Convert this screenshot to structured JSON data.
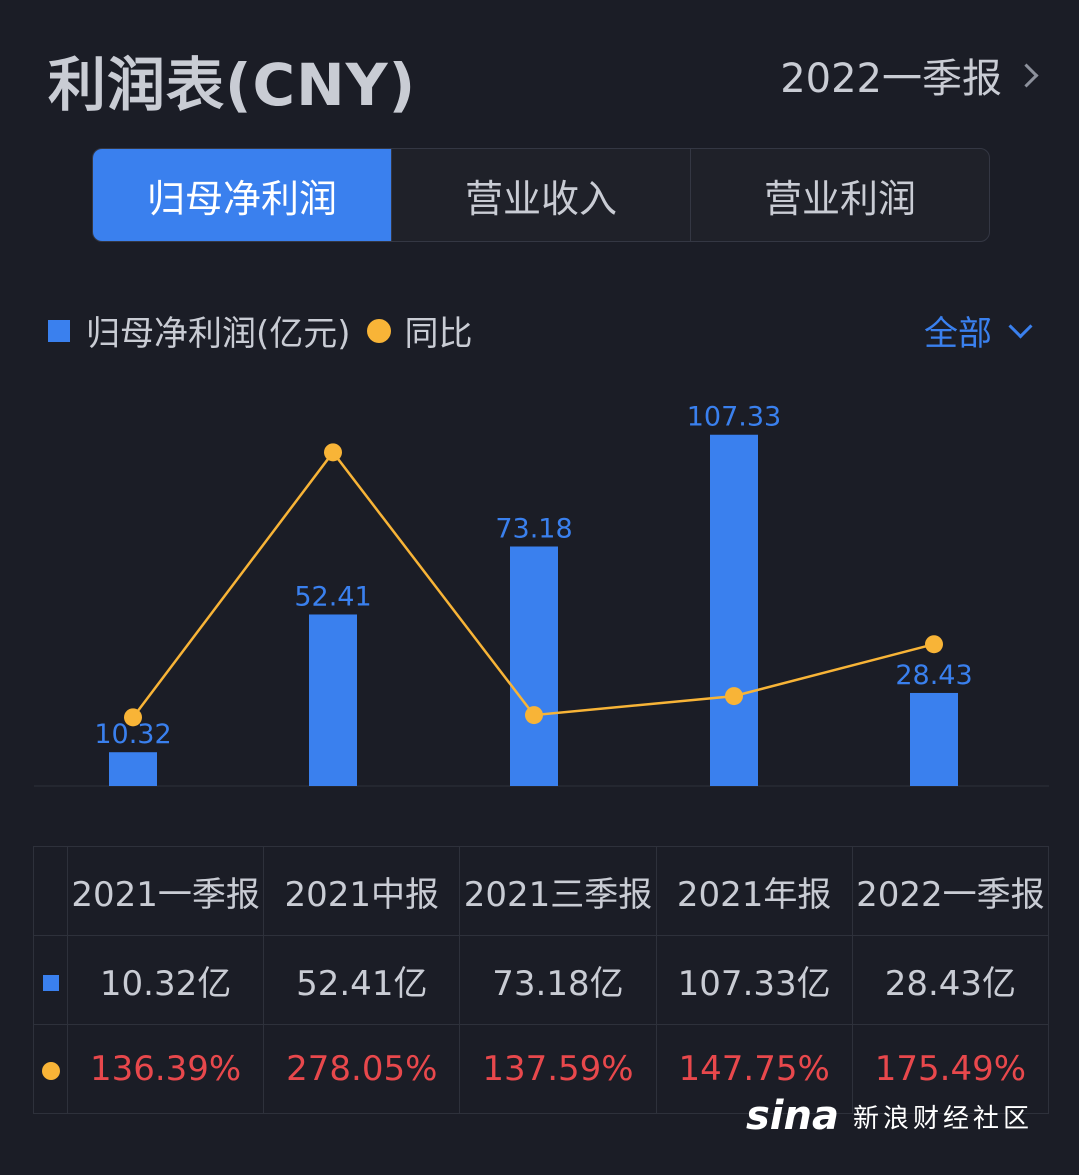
{
  "header": {
    "title": "利润表(CNY)",
    "period": "2022一季报"
  },
  "tabs": [
    {
      "label": "归母净利润",
      "active": true
    },
    {
      "label": "营业收入",
      "active": false
    },
    {
      "label": "营业利润",
      "active": false
    }
  ],
  "legend": {
    "bar_label": "归母净利润(亿元)",
    "line_label": "同比"
  },
  "filter": {
    "label": "全部"
  },
  "colors": {
    "bar": "#3a80ee",
    "line": "#f8b437",
    "negative_text": "#e8484c",
    "background": "#1b1d26"
  },
  "chart_data": {
    "type": "bar",
    "categories": [
      "2021一季报",
      "2021中报",
      "2021三季报",
      "2021年报",
      "2022一季报"
    ],
    "series": [
      {
        "name": "归母净利润(亿元)",
        "type": "bar",
        "values": [
          10.32,
          52.41,
          73.18,
          107.33,
          28.43
        ],
        "labels": [
          "10.32",
          "52.41",
          "73.18",
          "107.33",
          "28.43"
        ]
      },
      {
        "name": "同比",
        "type": "line",
        "values": [
          136.39,
          278.05,
          137.59,
          147.75,
          175.49
        ]
      }
    ],
    "ylim": [
      0,
      110
    ],
    "grid": false
  },
  "table": {
    "headers": [
      "2021一季报",
      "2021中报",
      "2021三季报",
      "2021年报",
      "2022一季报"
    ],
    "profit": [
      "10.32亿",
      "52.41亿",
      "73.18亿",
      "107.33亿",
      "28.43亿"
    ],
    "yoy": [
      "136.39%",
      "278.05%",
      "137.59%",
      "147.75%",
      "175.49%"
    ]
  },
  "watermark": {
    "logo": "sina",
    "text": "新浪财经社区"
  }
}
